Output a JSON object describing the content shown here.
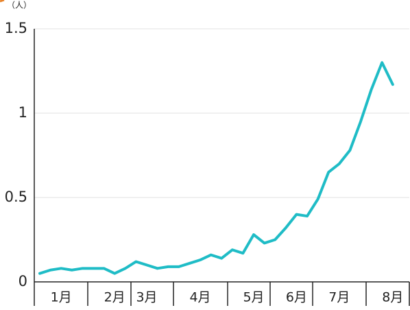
{
  "chart_data": {
    "type": "line",
    "y_axis_label": "（人）",
    "categories": [
      null,
      null,
      "1月",
      null,
      null,
      null,
      null,
      "2月",
      null,
      null,
      "3月",
      null,
      null,
      null,
      null,
      "4月",
      null,
      null,
      null,
      null,
      "5月",
      null,
      null,
      null,
      "6月",
      null,
      null,
      null,
      "7月",
      null,
      null,
      null,
      null,
      "8月"
    ],
    "series": [
      {
        "color": "#1fbcc6",
        "values": [
          0.05,
          0.07,
          0.08,
          0.07,
          0.08,
          0.08,
          0.08,
          0.05,
          0.08,
          0.12,
          0.1,
          0.08,
          0.09,
          0.09,
          0.11,
          0.13,
          0.16,
          0.14,
          0.19,
          0.17,
          0.28,
          0.23,
          0.25,
          0.32,
          0.4,
          0.39,
          0.49,
          0.65,
          0.7,
          0.78,
          0.95,
          1.14,
          1.3,
          1.17
        ]
      }
    ],
    "ylim": [
      0,
      1.5
    ],
    "yticks": [
      0,
      {
        "value": 0.5,
        "label": "0.5"
      },
      1,
      {
        "value": 1.5,
        "label": "1.5"
      }
    ],
    "grid": true
  }
}
